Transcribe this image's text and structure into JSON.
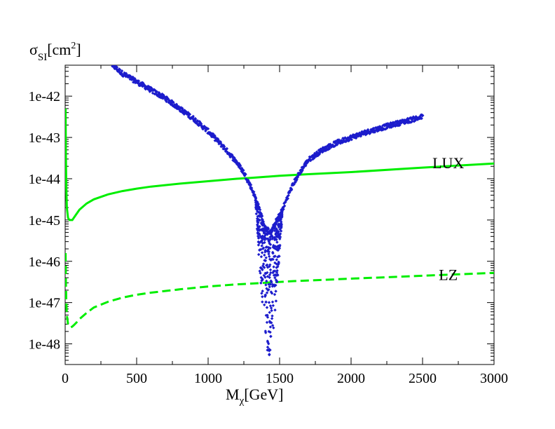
{
  "chart_data": {
    "type": "scatter",
    "xlabel": {
      "main": "M",
      "sub": "χ",
      "unit": "[GeV]"
    },
    "ylabel": {
      "main": "σ",
      "sub": "SI",
      "unit_prefix": "[cm",
      "unit_sup": "2",
      "unit_suffix": "]"
    },
    "x_range": [
      0,
      3000
    ],
    "y_range_log10": [
      -48.5,
      -41.25
    ],
    "x_ticks": [
      0,
      500,
      1000,
      1500,
      2000,
      2500,
      3000
    ],
    "x_tick_labels": [
      "0",
      "500",
      "1000",
      "1500",
      "2000",
      "2500",
      "3000"
    ],
    "y_ticks_log10": [
      -42,
      -43,
      -44,
      -45,
      -46,
      -47,
      -48
    ],
    "y_tick_labels": [
      "1e-42",
      "1e-43",
      "1e-44",
      "1e-45",
      "1e-46",
      "1e-47",
      "1e-48"
    ],
    "series": [
      {
        "name": "LUX",
        "style": "solid",
        "color": "#00ee00",
        "x": [
          3,
          5,
          8,
          12,
          20,
          30,
          40,
          50,
          60,
          80,
          100,
          150,
          200,
          300,
          400,
          500,
          600,
          800,
          1000,
          1200,
          1300,
          1500,
          1700,
          2000,
          2500,
          3000
        ],
        "log10_y": [
          -42.3,
          -43.4,
          -44.2,
          -44.7,
          -44.95,
          -45.0,
          -45.0,
          -45.0,
          -44.95,
          -44.85,
          -44.75,
          -44.6,
          -44.5,
          -44.38,
          -44.3,
          -44.24,
          -44.19,
          -44.12,
          -44.06,
          -44.0,
          -43.98,
          -43.93,
          -43.89,
          -43.84,
          -43.73,
          -43.63
        ]
      },
      {
        "name": "LZ",
        "style": "dashed",
        "color": "#00ee00",
        "x": [
          3,
          5,
          8,
          12,
          20,
          30,
          40,
          50,
          60,
          80,
          100,
          150,
          200,
          300,
          400,
          500,
          600,
          800,
          1000,
          1200,
          1400,
          1600,
          1800,
          2000,
          2500,
          3000
        ],
        "log10_y": [
          -45.8,
          -46.5,
          -47.0,
          -47.3,
          -47.52,
          -47.58,
          -47.6,
          -47.58,
          -47.55,
          -47.48,
          -47.4,
          -47.25,
          -47.12,
          -46.98,
          -46.88,
          -46.81,
          -46.76,
          -46.68,
          -46.61,
          -46.56,
          -46.52,
          -46.48,
          -46.45,
          -46.42,
          -46.35,
          -46.28
        ]
      },
      {
        "name": "scan points",
        "style": "markers",
        "color": "#1c1ccc",
        "band_x": [
          330,
          400,
          500,
          600,
          700,
          800,
          900,
          1000,
          1100,
          1200,
          1250,
          1300,
          1330,
          1360,
          1400,
          1440,
          1480,
          1520,
          1560,
          1600,
          1650,
          1700,
          1800,
          1900,
          2000,
          2100,
          2200,
          2300,
          2400,
          2500
        ],
        "band_log10_y": [
          -41.25,
          -41.45,
          -41.65,
          -41.85,
          -42.05,
          -42.3,
          -42.55,
          -42.85,
          -43.2,
          -43.6,
          -43.85,
          -44.2,
          -44.45,
          -44.75,
          -45.2,
          -45.3,
          -45.0,
          -44.75,
          -44.4,
          -44.1,
          -43.8,
          -43.55,
          -43.3,
          -43.13,
          -43.0,
          -42.88,
          -42.78,
          -42.68,
          -42.59,
          -42.5
        ],
        "dip_x_range": [
          1330,
          1520
        ],
        "dip_min_log10_y": -48.3
      }
    ],
    "annotations": [
      {
        "text": "LUX",
        "x": 2680,
        "log10_y": -43.75
      },
      {
        "text": "LZ",
        "x": 2680,
        "log10_y": -46.45
      }
    ]
  }
}
